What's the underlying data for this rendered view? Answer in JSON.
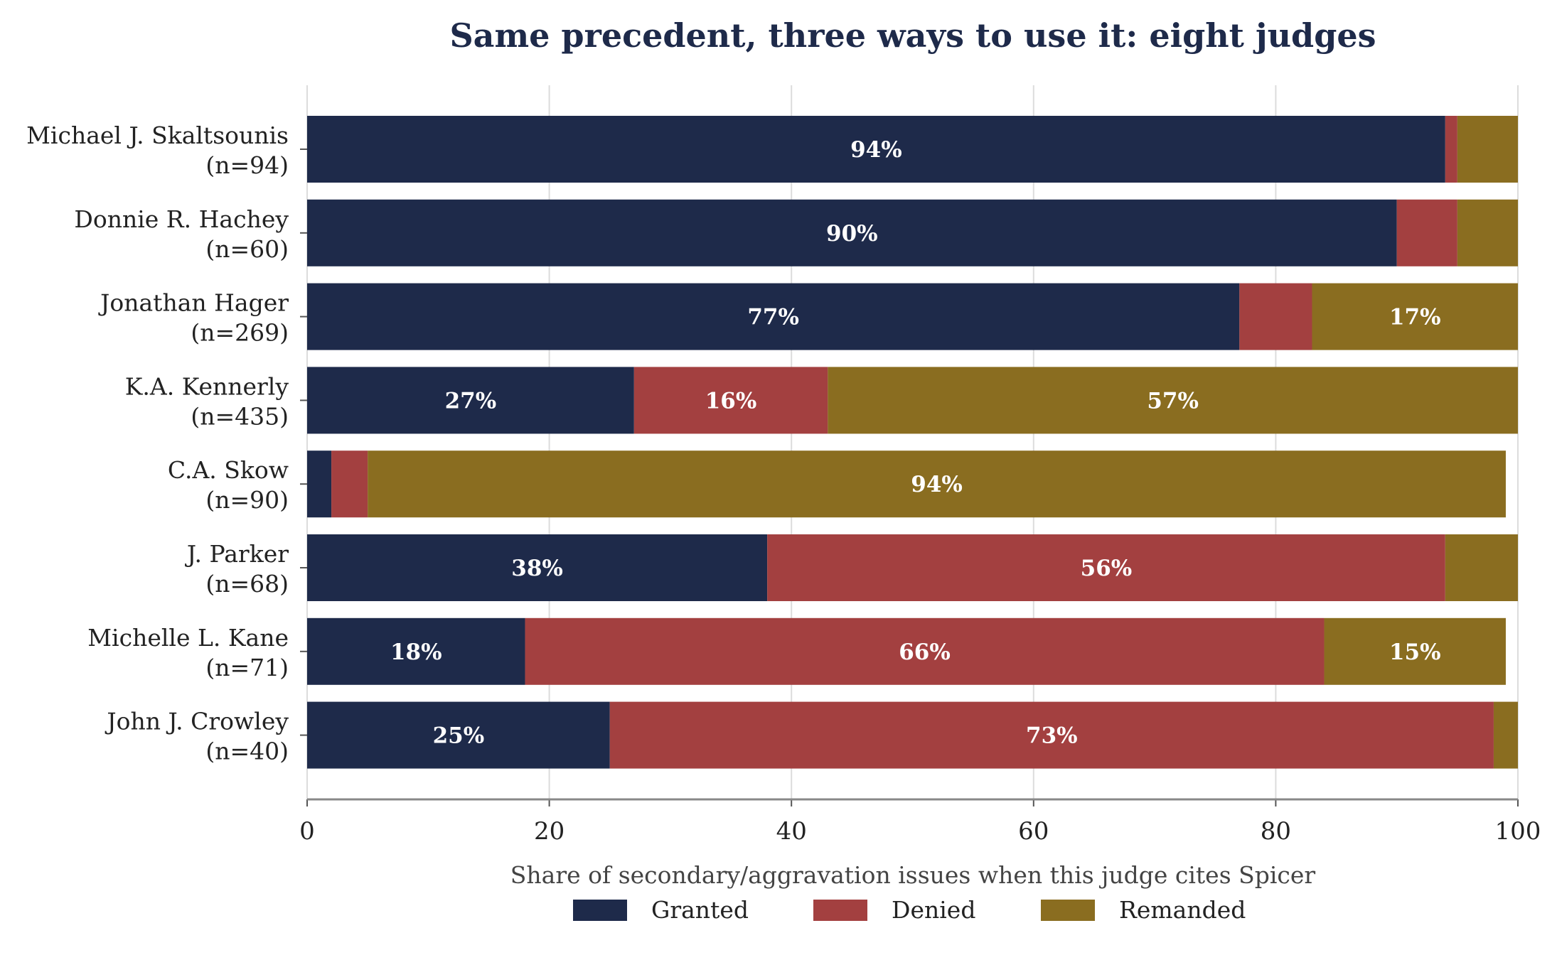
{
  "chart_data": {
    "type": "bar",
    "orientation": "horizontal",
    "stacked": true,
    "title": "Same precedent, three ways to use it: eight judges",
    "xlabel": "Share of secondary/aggravation issues when this judge cites Spicer",
    "ylabel": "",
    "xlim": [
      0,
      100
    ],
    "xticks": [
      "0",
      "20",
      "40",
      "60",
      "80",
      "100"
    ],
    "grid": "vertical",
    "legend_placement": "bottom",
    "categories": [
      {
        "name": "Michael J. Skaltsounis",
        "n": "(n=94)"
      },
      {
        "name": "Donnie R. Hachey",
        "n": "(n=60)"
      },
      {
        "name": "Jonathan Hager",
        "n": "(n=269)"
      },
      {
        "name": "K.A. Kennerly",
        "n": "(n=435)"
      },
      {
        "name": "C.A. Skow",
        "n": "(n=90)"
      },
      {
        "name": "J. Parker",
        "n": "(n=68)"
      },
      {
        "name": "Michelle L. Kane",
        "n": "(n=71)"
      },
      {
        "name": "John J. Crowley",
        "n": "(n=40)"
      }
    ],
    "series": [
      {
        "name": "Granted",
        "color": "#1e2a4a",
        "values": [
          94,
          90,
          77,
          27,
          2,
          38,
          18,
          25
        ],
        "labels": [
          "94%",
          "90%",
          "77%",
          "27%",
          "",
          "38%",
          "18%",
          "25%"
        ]
      },
      {
        "name": "Denied",
        "color": "#a34040",
        "values": [
          1,
          5,
          6,
          16,
          3,
          56,
          66,
          73
        ],
        "labels": [
          "",
          "",
          "",
          "16%",
          "",
          "56%",
          "66%",
          "73%"
        ]
      },
      {
        "name": "Remanded",
        "color": "#8a6d20",
        "values": [
          5,
          5,
          17,
          57,
          94,
          6,
          15,
          2
        ],
        "labels": [
          "",
          "",
          "17%",
          "57%",
          "94%",
          "",
          "15%",
          ""
        ]
      }
    ]
  }
}
